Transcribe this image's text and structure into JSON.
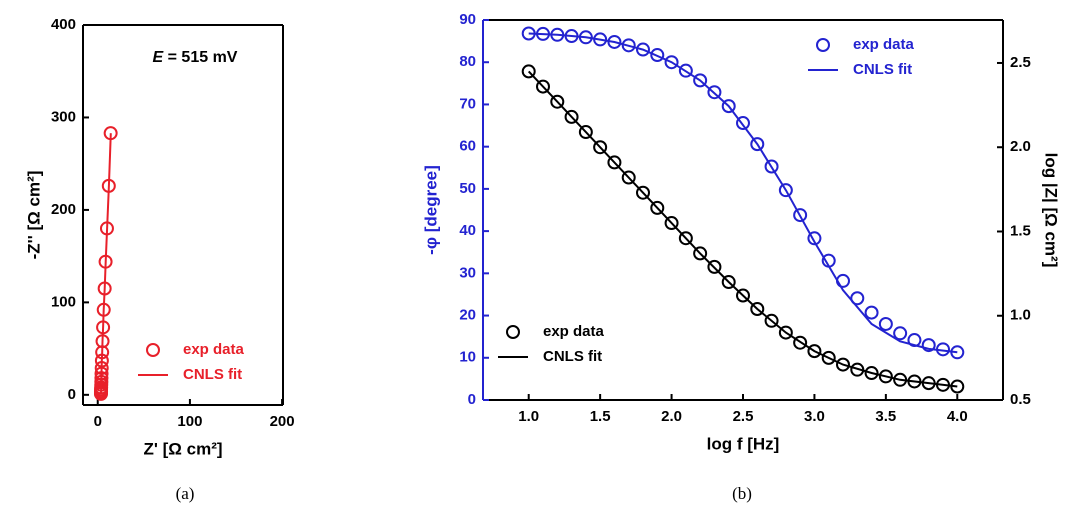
{
  "chart_data": [
    {
      "type": "scatter",
      "caption": "(a)",
      "xlabel": "Z' [Ω cm²]",
      "ylabel": "-Z'' [Ω cm²]",
      "annotation": [
        "E",
        " = 515 mV"
      ],
      "xlim": [
        -16,
        201
      ],
      "xticks": [
        0,
        100,
        200
      ],
      "ylim": [
        -11,
        400
      ],
      "yticks": [
        0,
        100,
        200,
        300,
        400
      ],
      "series": [
        {
          "name": "exp data",
          "color": "#e8202a",
          "style": "markers",
          "legend": "lower right",
          "x": [
            14,
            12,
            10,
            8.5,
            7.5,
            6.5,
            5.8,
            5.2,
            4.8,
            4.5,
            4.3,
            4.1,
            4.0,
            3.9,
            3.8,
            3.7,
            3.6,
            3.6,
            3.5,
            3.5,
            3.5
          ],
          "values": [
            283,
            226,
            180,
            144,
            115,
            92,
            73,
            58,
            46,
            37,
            29,
            23,
            18,
            14,
            11,
            8,
            6,
            4,
            3,
            2,
            1
          ]
        },
        {
          "name": "CNLS fit",
          "color": "#e8202a",
          "style": "line",
          "legend": "lower right",
          "x": [
            14.2,
            12.1,
            10.1,
            8.6,
            7.5,
            6.5,
            5.8,
            5.2,
            4.8,
            4.4,
            4.1,
            3.8,
            3.6,
            3.5
          ],
          "values": [
            283,
            226,
            180,
            144,
            115,
            92,
            73,
            58,
            46,
            37,
            23,
            11,
            4,
            1
          ]
        }
      ]
    },
    {
      "type": "scatter",
      "caption": "(b)",
      "xlabel": "log f [Hz]",
      "ylabel": "-φ [degree]",
      "y2label": "log |Z| [Ω cm²]",
      "xlim": [
        0.68,
        4.32
      ],
      "xticks": [
        {
          "value": 1,
          "label": "1.0"
        },
        1.5,
        {
          "value": 2,
          "label": "2.0"
        },
        2.5,
        {
          "value": 3,
          "label": "3.0"
        },
        3.5,
        {
          "value": 4,
          "label": "4.0"
        }
      ],
      "ylim": [
        0,
        90
      ],
      "yticks": [
        0,
        10,
        20,
        30,
        40,
        50,
        60,
        70,
        80,
        90
      ],
      "y2lim": [
        0.5,
        2.755
      ],
      "y2ticks": [
        0.5,
        {
          "value": 1,
          "label": "1.0"
        },
        1.5,
        {
          "value": 2,
          "label": "2.0"
        },
        2.5
      ],
      "series": [
        {
          "name": "exp data",
          "color": "#2323d0",
          "style": "markers",
          "legend": "upper right",
          "x": [
            1.0,
            1.1,
            1.2,
            1.3,
            1.4,
            1.5,
            1.6,
            1.7,
            1.8,
            1.9,
            2.0,
            2.1,
            2.2,
            2.3,
            2.4,
            2.5,
            2.6,
            2.7,
            2.8,
            2.9,
            3.0,
            3.1,
            3.2,
            3.3,
            3.4,
            3.5,
            3.6,
            3.7,
            3.8,
            3.9,
            4.0
          ],
          "values": [
            86.8,
            86.7,
            86.5,
            86.2,
            85.9,
            85.4,
            84.8,
            84.0,
            83.0,
            81.7,
            80.0,
            78.0,
            75.7,
            72.9,
            69.6,
            65.6,
            60.6,
            55.3,
            49.7,
            43.8,
            38.3,
            33.0,
            28.2,
            24.1,
            20.7,
            18.0,
            15.8,
            14.2,
            13.0,
            12.0,
            11.3
          ]
        },
        {
          "name": "CNLS fit",
          "color": "#2323d0",
          "style": "line",
          "legend": "upper right",
          "x": [
            1.0,
            1.2,
            1.4,
            1.6,
            1.8,
            2.0,
            2.2,
            2.4,
            2.6,
            2.8,
            3.0,
            3.2,
            3.4,
            3.6,
            3.8,
            4.0
          ],
          "values": [
            86.8,
            86.5,
            85.9,
            84.8,
            83.0,
            80.0,
            75.7,
            69.6,
            60.6,
            49.7,
            37.5,
            26.0,
            18.0,
            13.9,
            12.1,
            11.3
          ]
        },
        {
          "name": "exp data",
          "color": "#000000",
          "style": "markers",
          "legend": "lower left",
          "axis": "y2",
          "x": [
            1.0,
            1.1,
            1.2,
            1.3,
            1.4,
            1.5,
            1.6,
            1.7,
            1.8,
            1.9,
            2.0,
            2.1,
            2.2,
            2.3,
            2.4,
            2.5,
            2.6,
            2.7,
            2.8,
            2.9,
            3.0,
            3.1,
            3.2,
            3.3,
            3.4,
            3.5,
            3.6,
            3.7,
            3.8,
            3.9,
            4.0
          ],
          "values": [
            2.45,
            2.36,
            2.27,
            2.18,
            2.09,
            2.0,
            1.91,
            1.82,
            1.73,
            1.64,
            1.55,
            1.46,
            1.37,
            1.29,
            1.2,
            1.12,
            1.04,
            0.97,
            0.9,
            0.84,
            0.79,
            0.75,
            0.71,
            0.68,
            0.66,
            0.64,
            0.62,
            0.61,
            0.6,
            0.59,
            0.58
          ]
        },
        {
          "name": "CNLS fit",
          "color": "#000000",
          "style": "line",
          "legend": "lower left",
          "axis": "y2",
          "x": [
            1.0,
            1.2,
            1.4,
            1.6,
            1.8,
            2.0,
            2.2,
            2.4,
            2.6,
            2.8,
            3.0,
            3.2,
            3.4,
            3.6,
            3.8,
            4.0
          ],
          "values": [
            2.45,
            2.27,
            2.09,
            1.91,
            1.73,
            1.55,
            1.37,
            1.2,
            1.04,
            0.9,
            0.79,
            0.71,
            0.66,
            0.62,
            0.6,
            0.58
          ]
        }
      ]
    }
  ]
}
